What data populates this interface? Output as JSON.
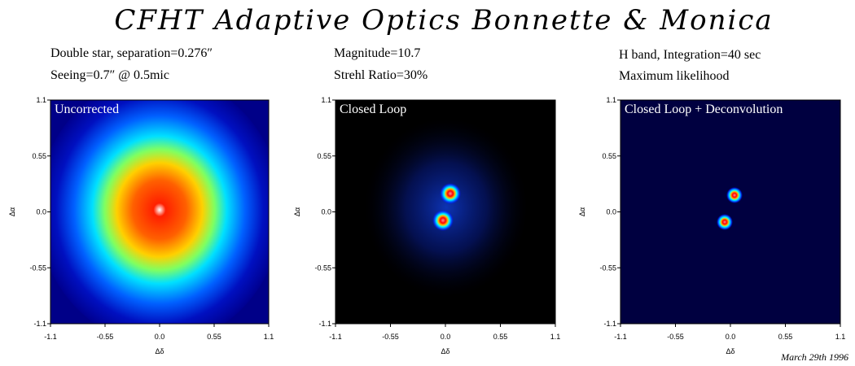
{
  "title": "CFHT Adaptive Optics Bonnette & Monica",
  "info": [
    [
      "Double star, separation=0.276″",
      "Seeing=0.7″ @ 0.5mic"
    ],
    [
      "Magnitude=10.7",
      "Strehl Ratio=30%"
    ],
    [
      "H band, Integration=40 sec",
      "Maximum likelihood"
    ]
  ],
  "date": "March 29th 1996",
  "panels": [
    {
      "label": "Uncorrected",
      "xlabel": "Δδ",
      "ylabel": "Δα",
      "xlim": [
        -1.1,
        1.1
      ],
      "ylim": [
        -1.1,
        1.1
      ],
      "xticks": [
        -1.1,
        -0.55,
        {
          "value": 0,
          "label": "0.0"
        },
        0.55,
        1.1
      ],
      "yticks": [
        -1.1,
        -0.55,
        {
          "value": 0,
          "label": "0.0"
        },
        0.55,
        1.1
      ]
    },
    {
      "label": "Closed Loop",
      "xlabel": "Δδ",
      "ylabel": "Δα",
      "xlim": [
        -1.1,
        1.1
      ],
      "ylim": [
        -1.1,
        1.1
      ],
      "xticks": [
        -1.1,
        -0.55,
        {
          "value": 0,
          "label": "0.0"
        },
        0.55,
        1.1
      ],
      "yticks": [
        -1.1,
        -0.55,
        {
          "value": 0,
          "label": "0.0"
        },
        0.55,
        1.1
      ]
    },
    {
      "label": "Closed Loop + Deconvolution",
      "xlabel": "Δδ",
      "ylabel": "Δα",
      "xlim": [
        -1.1,
        1.1
      ],
      "ylim": [
        -1.1,
        1.1
      ],
      "xticks": [
        -1.1,
        -0.55,
        {
          "value": 0,
          "label": "0.0"
        },
        0.55,
        1.1
      ],
      "yticks": [
        -1.1,
        -0.55,
        {
          "value": 0,
          "label": "0.0"
        },
        0.55,
        1.1
      ]
    }
  ]
}
